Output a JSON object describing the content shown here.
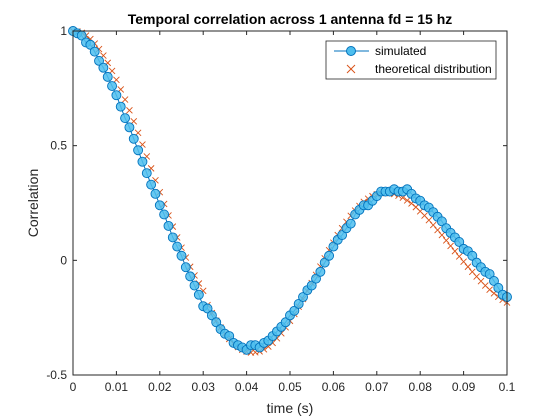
{
  "chart_data": {
    "type": "line",
    "title": "Temporal correlation across 1 antenna fd = 15 hz",
    "xlabel": "time (s)",
    "ylabel": "Correlation",
    "xlim": [
      0,
      0.1
    ],
    "ylim": [
      -0.5,
      1
    ],
    "xticks": [
      0,
      0.01,
      0.02,
      0.03,
      0.04,
      0.05,
      0.06,
      0.07,
      0.08,
      0.09,
      0.1
    ],
    "xtick_labels": [
      "0",
      "0.01",
      "0.02",
      "0.03",
      "0.04",
      "0.05",
      "0.06",
      "0.07",
      "0.08",
      "0.09",
      "0.1"
    ],
    "yticks": [
      -0.5,
      0,
      0.5,
      1
    ],
    "ytick_labels": [
      "-0.5",
      "0",
      "0.5",
      "1"
    ],
    "grid": false,
    "legend_position": "top-right",
    "series": [
      {
        "name": "simulated",
        "marker": "circle",
        "color": "#0072BD",
        "marker_edge": "#0072BD",
        "marker_face": "#4DBEEE",
        "x": [
          0,
          0.001,
          0.002,
          0.003,
          0.004,
          0.005,
          0.006,
          0.007,
          0.008,
          0.009,
          0.01,
          0.011,
          0.012,
          0.013,
          0.014,
          0.015,
          0.016,
          0.017,
          0.018,
          0.019,
          0.02,
          0.021,
          0.022,
          0.023,
          0.024,
          0.025,
          0.026,
          0.027,
          0.028,
          0.029,
          0.03,
          0.031,
          0.032,
          0.033,
          0.034,
          0.035,
          0.036,
          0.037,
          0.038,
          0.039,
          0.04,
          0.041,
          0.042,
          0.043,
          0.044,
          0.045,
          0.046,
          0.047,
          0.048,
          0.049,
          0.05,
          0.051,
          0.052,
          0.053,
          0.054,
          0.055,
          0.056,
          0.057,
          0.058,
          0.059,
          0.06,
          0.061,
          0.062,
          0.063,
          0.064,
          0.065,
          0.066,
          0.067,
          0.068,
          0.069,
          0.07,
          0.071,
          0.072,
          0.073,
          0.074,
          0.075,
          0.076,
          0.077,
          0.078,
          0.079,
          0.08,
          0.081,
          0.082,
          0.083,
          0.084,
          0.085,
          0.086,
          0.087,
          0.088,
          0.089,
          0.09,
          0.091,
          0.092,
          0.093,
          0.094,
          0.095,
          0.096,
          0.097,
          0.098,
          0.099,
          0.1
        ],
        "y": [
          1.0,
          0.99,
          0.98,
          0.95,
          0.94,
          0.91,
          0.87,
          0.84,
          0.8,
          0.76,
          0.72,
          0.67,
          0.62,
          0.58,
          0.53,
          0.48,
          0.43,
          0.38,
          0.33,
          0.29,
          0.24,
          0.2,
          0.15,
          0.1,
          0.06,
          0.02,
          -0.03,
          -0.07,
          -0.11,
          -0.15,
          -0.2,
          -0.21,
          -0.24,
          -0.27,
          -0.3,
          -0.32,
          -0.33,
          -0.36,
          -0.37,
          -0.38,
          -0.39,
          -0.37,
          -0.37,
          -0.38,
          -0.36,
          -0.35,
          -0.33,
          -0.31,
          -0.29,
          -0.27,
          -0.24,
          -0.22,
          -0.19,
          -0.16,
          -0.13,
          -0.11,
          -0.08,
          -0.05,
          -0.01,
          0.02,
          0.06,
          0.09,
          0.11,
          0.14,
          0.16,
          0.2,
          0.22,
          0.24,
          0.24,
          0.26,
          0.28,
          0.3,
          0.3,
          0.3,
          0.31,
          0.3,
          0.3,
          0.31,
          0.29,
          0.27,
          0.26,
          0.24,
          0.23,
          0.21,
          0.19,
          0.17,
          0.14,
          0.12,
          0.1,
          0.08,
          0.05,
          0.04,
          0.02,
          -0.01,
          -0.03,
          -0.05,
          -0.06,
          -0.09,
          -0.12,
          -0.15,
          -0.16
        ]
      },
      {
        "name": "theoretical distribution",
        "marker": "x",
        "color": "#D95319",
        "x": [
          0,
          0.001,
          0.002,
          0.003,
          0.004,
          0.005,
          0.006,
          0.007,
          0.008,
          0.009,
          0.01,
          0.011,
          0.012,
          0.013,
          0.014,
          0.015,
          0.016,
          0.017,
          0.018,
          0.019,
          0.02,
          0.021,
          0.022,
          0.023,
          0.024,
          0.025,
          0.026,
          0.027,
          0.028,
          0.029,
          0.03,
          0.031,
          0.032,
          0.033,
          0.034,
          0.035,
          0.036,
          0.037,
          0.038,
          0.039,
          0.04,
          0.041,
          0.042,
          0.043,
          0.044,
          0.045,
          0.046,
          0.047,
          0.048,
          0.049,
          0.05,
          0.051,
          0.052,
          0.053,
          0.054,
          0.055,
          0.056,
          0.057,
          0.058,
          0.059,
          0.06,
          0.061,
          0.062,
          0.063,
          0.064,
          0.065,
          0.066,
          0.067,
          0.068,
          0.069,
          0.07,
          0.071,
          0.072,
          0.073,
          0.074,
          0.075,
          0.076,
          0.077,
          0.078,
          0.079,
          0.08,
          0.081,
          0.082,
          0.083,
          0.084,
          0.085,
          0.086,
          0.087,
          0.088,
          0.089,
          0.09,
          0.091,
          0.092,
          0.093,
          0.094,
          0.095,
          0.096,
          0.097,
          0.098,
          0.099,
          0.1
        ],
        "y": [
          1.0,
          0.998,
          0.992,
          0.98,
          0.965,
          0.945,
          0.921,
          0.893,
          0.861,
          0.826,
          0.787,
          0.745,
          0.701,
          0.654,
          0.606,
          0.556,
          0.505,
          0.453,
          0.401,
          0.349,
          0.297,
          0.246,
          0.196,
          0.147,
          0.1,
          0.055,
          0.012,
          -0.028,
          -0.066,
          -0.101,
          -0.133,
          -0.195,
          -0.23,
          -0.263,
          -0.293,
          -0.32,
          -0.343,
          -0.363,
          -0.378,
          -0.39,
          -0.398,
          -0.402,
          -0.401,
          -0.397,
          -0.388,
          -0.376,
          -0.36,
          -0.34,
          -0.318,
          -0.292,
          -0.264,
          -0.234,
          -0.202,
          -0.169,
          -0.134,
          -0.099,
          -0.063,
          -0.027,
          0.009,
          0.044,
          0.077,
          0.11,
          0.14,
          0.168,
          0.194,
          0.217,
          0.237,
          0.255,
          0.269,
          0.28,
          0.288,
          0.293,
          0.295,
          0.293,
          0.289,
          0.282,
          0.273,
          0.261,
          0.248,
          0.232,
          0.214,
          0.195,
          0.175,
          0.154,
          0.132,
          0.11,
          0.087,
          0.063,
          0.04,
          0.017,
          -0.006,
          -0.028,
          -0.05,
          -0.071,
          -0.091,
          -0.11,
          -0.128,
          -0.144,
          -0.159,
          -0.172,
          -0.184
        ]
      }
    ]
  }
}
